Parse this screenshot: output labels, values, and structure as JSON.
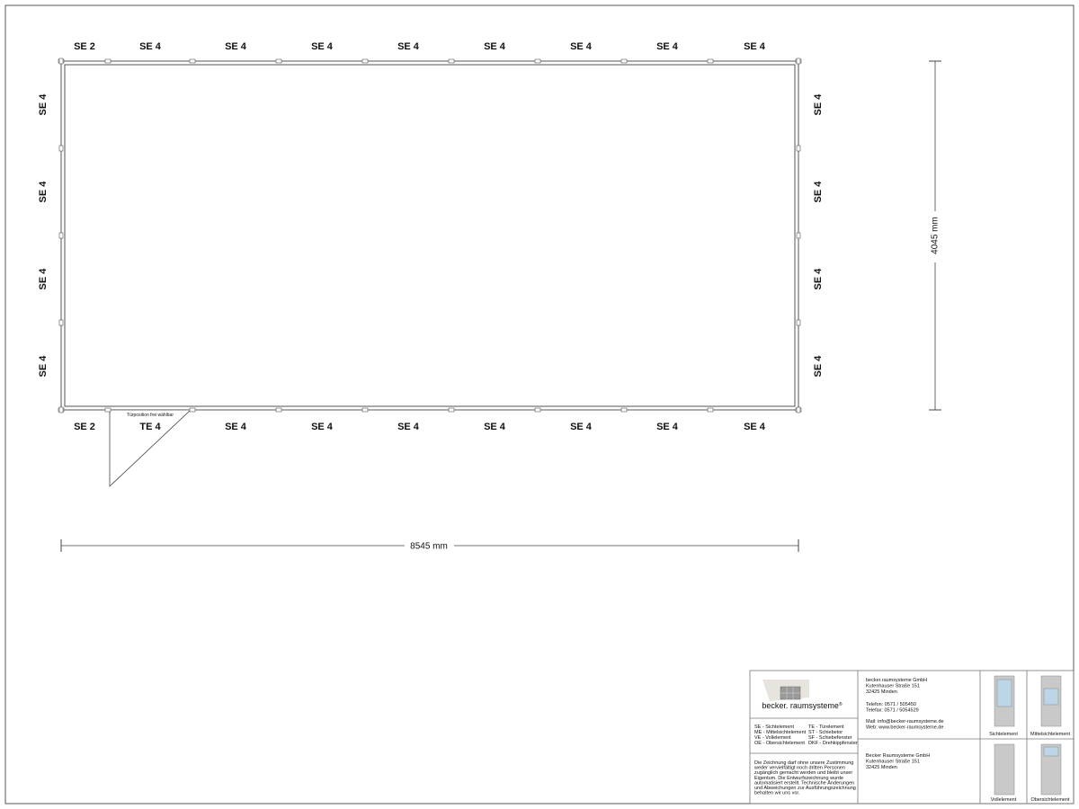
{
  "plan": {
    "top_labels": [
      "SE 2",
      "SE 4",
      "SE 4",
      "SE 4",
      "SE 4",
      "SE 4",
      "SE 4",
      "SE 4",
      "SE 4"
    ],
    "bottom_labels": [
      "SE 2",
      "TE 4",
      "SE 4",
      "SE 4",
      "SE 4",
      "SE 4",
      "SE 4",
      "SE 4",
      "SE 4"
    ],
    "left_labels": [
      "SE 4",
      "SE 4",
      "SE 4",
      "SE 4"
    ],
    "right_labels": [
      "SE 4",
      "SE 4",
      "SE 4",
      "SE 4"
    ],
    "door_note": "Türposition frei wählbar",
    "width_dimension": "8545 mm",
    "depth_dimension": "4045 mm"
  },
  "title_block": {
    "logo_text": "becker. raumsysteme",
    "logo_mark": "®",
    "legend": [
      [
        "SE - Sichtelement",
        "TE - Türelement"
      ],
      [
        "ME - Mittelsichtelement",
        "ST - Schiebetor"
      ],
      [
        "VE - Vollelement",
        "SF - Schiebefenster"
      ],
      [
        "OE - Obersichtelement",
        "DKF - Drehkippfenster"
      ]
    ],
    "disclaimer": [
      "Die Zeichnung darf ohne unsere Zustimmung",
      "weder vervielfältigt noch dritten Personen",
      "zugänglich gemacht werden und bleibt unser",
      "Eigentum. Die Entwurfszeichnung wurde",
      "automatisiert erstellt. Technische Änderungen",
      "und Abweichungen zur Ausführungszeichnung",
      "behalten wir uns vor."
    ],
    "address": [
      "becker.raumsysteme GmbH",
      "Kutenhauser Straße 151",
      "32425 Minden",
      "Telefon: 0571 / 505450",
      "Telefax: 0571 / 5054529",
      "Mail: info@becker-raumsysteme.de",
      "Web: www.becker-raumsysteme.de"
    ],
    "client_address": [
      "Becker Raumsysteme GmbH",
      "Kutenhauser Straße 151",
      "32425 Minden"
    ],
    "elements": [
      "Sichtelement",
      "Mittelsichtelement",
      "Vollelement",
      "Obersichtelement"
    ]
  }
}
